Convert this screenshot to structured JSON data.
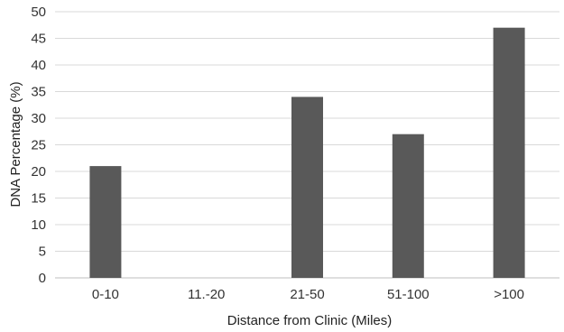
{
  "chart_data": {
    "type": "bar",
    "categories": [
      "0-10",
      "11.-20",
      "21-50",
      "51-100",
      ">100"
    ],
    "values": [
      21,
      0,
      34,
      27,
      47
    ],
    "title": "",
    "xlabel": "Distance from Clinic (Miles)",
    "ylabel": "DNA Percentage (%)",
    "ylim": [
      0,
      50
    ],
    "yticks": [
      0,
      5,
      10,
      15,
      20,
      25,
      30,
      35,
      40,
      45,
      50
    ],
    "grid": true,
    "legend": "none",
    "bar_color": "#595959"
  }
}
